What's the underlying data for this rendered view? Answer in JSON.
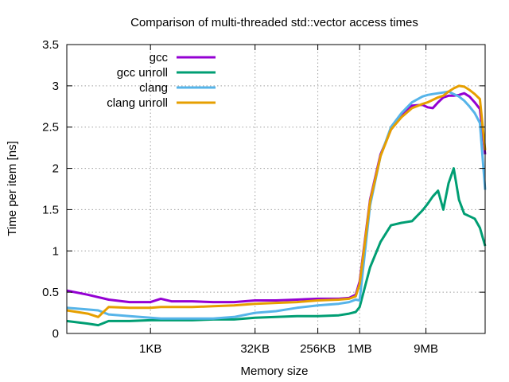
{
  "chart_data": {
    "type": "line",
    "title": "Comparison of multi-threaded std::vector access times",
    "xlabel": "Memory size",
    "ylabel": "Time per item [ns]",
    "x_scale": "log2",
    "x_unit": "KB",
    "xlim": [
      0.0625,
      65536
    ],
    "ylim": [
      0,
      3.5
    ],
    "x_ticks": [
      {
        "value": 1,
        "label": "1KB"
      },
      {
        "value": 32,
        "label": "32KB"
      },
      {
        "value": 256,
        "label": "256KB"
      },
      {
        "value": 1024,
        "label": "1MB"
      },
      {
        "value": 9216,
        "label": "9MB"
      }
    ],
    "y_ticks": [
      {
        "value": 0,
        "label": "0"
      },
      {
        "value": 0.5,
        "label": "0.5"
      },
      {
        "value": 1,
        "label": "1"
      },
      {
        "value": 1.5,
        "label": "1.5"
      },
      {
        "value": 2,
        "label": "2"
      },
      {
        "value": 2.5,
        "label": "2.5"
      },
      {
        "value": 3,
        "label": "3"
      },
      {
        "value": 3.5,
        "label": "3.5"
      }
    ],
    "grid": true,
    "legend_position": "top-left",
    "x": [
      0.0625,
      0.125,
      0.177,
      0.25,
      0.5,
      1,
      1.41,
      2,
      4,
      8,
      16,
      32,
      64,
      128,
      256,
      512,
      724,
      900,
      1024,
      1448,
      2048,
      2896,
      4096,
      5793,
      8192,
      9742,
      11585,
      13777,
      16384,
      19484,
      23170,
      27554,
      32768,
      38968,
      46341,
      55109,
      65536
    ],
    "series": [
      {
        "name": "gcc",
        "color": "#9400d3",
        "values": [
          0.52,
          0.47,
          0.44,
          0.41,
          0.38,
          0.38,
          0.42,
          0.39,
          0.39,
          0.38,
          0.38,
          0.4,
          0.4,
          0.41,
          0.42,
          0.42,
          0.43,
          0.47,
          0.63,
          1.62,
          2.17,
          2.47,
          2.63,
          2.76,
          2.77,
          2.74,
          2.73,
          2.8,
          2.86,
          2.88,
          2.88,
          2.89,
          2.91,
          2.87,
          2.8,
          2.72,
          2.17
        ]
      },
      {
        "name": "gcc unroll",
        "color": "#009e73",
        "values": [
          0.15,
          0.12,
          0.1,
          0.15,
          0.15,
          0.16,
          0.16,
          0.16,
          0.16,
          0.17,
          0.17,
          0.19,
          0.2,
          0.21,
          0.21,
          0.22,
          0.24,
          0.26,
          0.32,
          0.8,
          1.11,
          1.31,
          1.34,
          1.36,
          1.49,
          1.57,
          1.66,
          1.73,
          1.5,
          1.82,
          2.0,
          1.62,
          1.45,
          1.42,
          1.39,
          1.28,
          1.06
        ]
      },
      {
        "name": "clang",
        "color": "#56b4e9",
        "values": [
          0.31,
          0.29,
          0.28,
          0.23,
          0.21,
          0.19,
          0.18,
          0.18,
          0.18,
          0.18,
          0.2,
          0.25,
          0.27,
          0.31,
          0.34,
          0.36,
          0.38,
          0.41,
          0.4,
          1.55,
          2.15,
          2.5,
          2.67,
          2.8,
          2.87,
          2.89,
          2.9,
          2.91,
          2.92,
          2.93,
          2.9,
          2.87,
          2.82,
          2.75,
          2.67,
          2.55,
          1.74
        ]
      },
      {
        "name": "clang unroll",
        "color": "#e69f00",
        "values": [
          0.28,
          0.24,
          0.2,
          0.32,
          0.31,
          0.31,
          0.32,
          0.32,
          0.32,
          0.33,
          0.34,
          0.36,
          0.37,
          0.38,
          0.4,
          0.41,
          0.42,
          0.45,
          0.6,
          1.6,
          2.15,
          2.47,
          2.62,
          2.73,
          2.78,
          2.8,
          2.83,
          2.86,
          2.88,
          2.93,
          2.97,
          3.0,
          2.99,
          2.95,
          2.9,
          2.84,
          2.22
        ]
      }
    ]
  }
}
